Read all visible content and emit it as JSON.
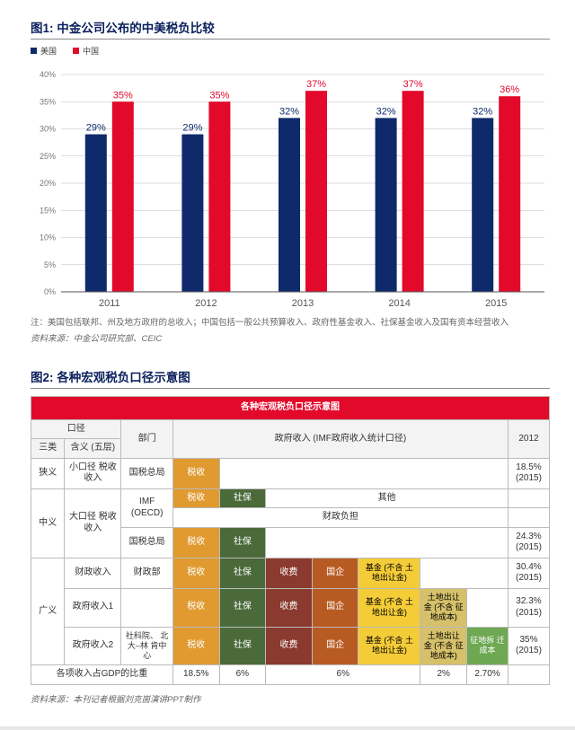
{
  "fig1": {
    "title": "图1: 中金公司公布的中美税负比较",
    "legend": {
      "usa": "美国",
      "china": "中国"
    },
    "colors": {
      "usa": "#0e2a6b",
      "china": "#e3092b",
      "grid": "#bdbdbd",
      "axis": "#555",
      "tick_text": "#777",
      "label_usa": "#0e2a6b",
      "label_china": "#e3092b"
    },
    "y": {
      "min": 0,
      "max": 40,
      "step": 5,
      "suffix": "%"
    },
    "years": [
      "2011",
      "2012",
      "2013",
      "2014",
      "2015"
    ],
    "usa_values": [
      29,
      29,
      32,
      32,
      32
    ],
    "china_values": [
      35,
      35,
      37,
      37,
      36
    ],
    "note": "注：美国包括联邦、州及地方政府的总收入；中国包括一般公共预算收入、政府性基金收入、社保基金收入及国有资本经营收入",
    "source": "资料来源：中金公司研究部、CEIC"
  },
  "fig2": {
    "title": "图2: 各种宏观税负口径示意图",
    "table_title": "各种宏观税负口径示意图",
    "cols": {
      "caliber": "口径",
      "sanlei": "三类",
      "hanyi": "含义 (五层)",
      "dept": "部门",
      "gov_income": "政府收入 (IMF政府收入统计口径)",
      "year": "2012"
    },
    "rows": {
      "narrow": {
        "name": "狭义",
        "hanyi": "小口径\n税收收入",
        "dept": "国税总局",
        "tax": "税收",
        "val": "18.5%\n(2015)"
      },
      "mid": {
        "name": "中义",
        "hanyi": "大口径\n税收收入",
        "r1": {
          "dept": "IMF\n(OECD)",
          "tax": "税收",
          "soc": "社保",
          "other": "其他"
        },
        "r2": {
          "burden": "财政负担"
        },
        "r3": {
          "dept": "国税总局",
          "tax": "税收",
          "soc": "社保",
          "val": "24.3%\n(2015)"
        }
      },
      "broad": {
        "name": "广义",
        "r1": {
          "hanyi": "财政收入",
          "dept": "财政部",
          "tax": "税收",
          "soc": "社保",
          "fee": "收费",
          "soe": "国企",
          "fund": "基金 (不含\n土地出让金)",
          "val": "30.4%\n(2015)"
        },
        "r2": {
          "hanyi": "政府收入1",
          "tax": "税收",
          "soc": "社保",
          "fee": "收费",
          "soe": "国企",
          "fund": "基金 (不含\n土地出让金)",
          "land": "土地出让\n金 (不含\n征地成本)",
          "val": "32.3%\n(2015)"
        },
        "r3": {
          "hanyi": "政府收入2",
          "dept": "社科院、\n北大–林\n肯中心",
          "tax": "税收",
          "soc": "社保",
          "fee": "收费",
          "soe": "国企",
          "fund": "基金 (不含\n土地出让金)",
          "land": "土地出让\n金 (不含\n征地成本)",
          "demo": "征地拆\n迁成本",
          "val": "35%\n(2015)"
        }
      },
      "gdp": {
        "label": "各项收入占GDP的比重",
        "v1": "18.5%",
        "v2": "6%",
        "v3": "6%",
        "v4": "2%",
        "v5": "2.70%"
      }
    },
    "source": "资料来源：本刊记者根据刘克崮演讲PPT制作"
  }
}
